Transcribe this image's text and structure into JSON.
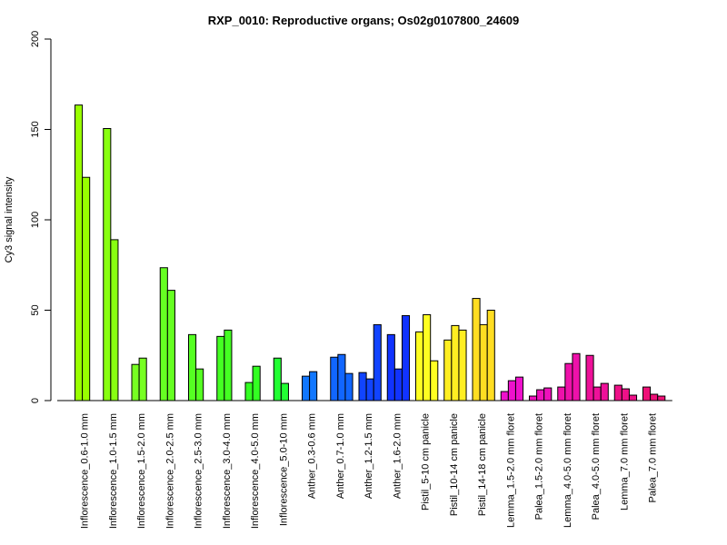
{
  "chart_data": {
    "type": "bar",
    "title": "RXP_0010: Reproductive organs; Os02g0107800_24609",
    "xlabel": "",
    "ylabel": "Cy3 signal intensity",
    "ylim": [
      0,
      200
    ],
    "yticks": [
      0,
      50,
      100,
      150,
      200
    ],
    "grid": false,
    "groups": [
      {
        "label": "Inflorescence_0.6-1.0 mm",
        "color": "#99FF00",
        "values": [
          163.5,
          123.5
        ]
      },
      {
        "label": "Inflorescence_1.0-1.5 mm",
        "color": "#88FF11",
        "values": [
          150.5,
          89
        ]
      },
      {
        "label": "Inflorescence_1.5-2.0 mm",
        "color": "#77FF22",
        "values": [
          20,
          23.5
        ]
      },
      {
        "label": "Inflorescence_2.0-2.5 mm",
        "color": "#66FF22",
        "values": [
          73.5,
          61
        ]
      },
      {
        "label": "Inflorescence_2.5-3.0 mm",
        "color": "#55FF22",
        "values": [
          36.5,
          17.5
        ]
      },
      {
        "label": "Inflorescence_3.0-4.0 mm",
        "color": "#44FF22",
        "values": [
          35.5,
          39
        ]
      },
      {
        "label": "Inflorescence_4.0-5.0 mm",
        "color": "#33FF22",
        "values": [
          10,
          19
        ]
      },
      {
        "label": "Inflorescence_5.0-10 mm",
        "color": "#22FF33",
        "values": [
          23.5,
          9.5
        ]
      },
      {
        "label": "Anther_0.3-0.6 mm",
        "color": "#1177FF",
        "values": [
          13.5,
          16
        ]
      },
      {
        "label": "Anther_0.7-1.0 mm",
        "color": "#1166FF",
        "values": [
          24,
          25.5,
          15
        ]
      },
      {
        "label": "Anther_1.2-1.5 mm",
        "color": "#1144FF",
        "values": [
          15.5,
          12,
          42
        ]
      },
      {
        "label": "Anther_1.6-2.0 mm",
        "color": "#1133FF",
        "values": [
          36.5,
          17.5,
          47
        ]
      },
      {
        "label": "Pistil_5-10 cm panicle",
        "color": "#FFFF22",
        "values": [
          38,
          47.5,
          22
        ]
      },
      {
        "label": "Pistil_10-14 cm panicle",
        "color": "#FFEE22",
        "values": [
          33.5,
          41.5,
          39
        ]
      },
      {
        "label": "Pistil_14-18 cm panicle",
        "color": "#FFDD22",
        "values": [
          56.5,
          42,
          50
        ]
      },
      {
        "label": "Lemma_1.5-2.0 mm floret",
        "color": "#EE11CC",
        "values": [
          5,
          11,
          13
        ]
      },
      {
        "label": "Palea_1.5-2.0 mm floret",
        "color": "#EE11BB",
        "values": [
          2.5,
          6,
          7
        ]
      },
      {
        "label": "Lemma_4.0-5.0 mm floret",
        "color": "#EE11AA",
        "values": [
          7.5,
          20.5,
          26
        ]
      },
      {
        "label": "Palea_4.0-5.0 mm floret",
        "color": "#EE1199",
        "values": [
          25,
          7.5,
          9.5
        ]
      },
      {
        "label": "Lemma_7.0 mm floret",
        "color": "#EE1188",
        "values": [
          8.5,
          6.5,
          3
        ]
      },
      {
        "label": "Palea_7.0 mm floret",
        "color": "#EE1177",
        "values": [
          7.5,
          3.5,
          2.5
        ]
      }
    ]
  }
}
